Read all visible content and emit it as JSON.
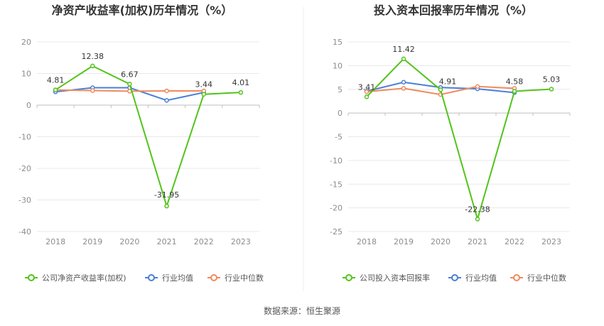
{
  "chart_data": [
    {
      "type": "line",
      "title": "净资产收益率(加权)历年情况（%）",
      "categories": [
        "2018",
        "2019",
        "2020",
        "2021",
        "2022",
        "2023"
      ],
      "ylim": [
        -40,
        20
      ],
      "yticks": [
        20,
        10,
        0,
        -10,
        -20,
        -30,
        -40
      ],
      "series": [
        {
          "name": "公司净资产收益率(加权)",
          "color": "#52c41a",
          "values": [
            4.81,
            12.38,
            6.67,
            -31.95,
            3.44,
            4.01
          ],
          "labeled": true
        },
        {
          "name": "行业均值",
          "color": "#4a7fd6",
          "values": [
            4.2,
            5.5,
            5.5,
            1.5,
            4.0,
            null
          ],
          "labeled": false
        },
        {
          "name": "行业中位数",
          "color": "#f08a5d",
          "values": [
            4.8,
            4.6,
            4.4,
            4.5,
            4.5,
            null
          ],
          "labeled": false
        }
      ],
      "data_labels": [
        "4.81",
        "12.38",
        "6.67",
        "-31.95",
        "3.44",
        "4.01"
      ]
    },
    {
      "type": "line",
      "title": "投入资本回报率历年情况（%）",
      "categories": [
        "2018",
        "2019",
        "2020",
        "2021",
        "2022",
        "2023"
      ],
      "ylim": [
        -25,
        15
      ],
      "yticks": [
        15,
        10,
        5,
        0,
        -5,
        -10,
        -15,
        -20,
        -25
      ],
      "series": [
        {
          "name": "公司投入资本回报率",
          "color": "#52c41a",
          "values": [
            3.41,
            11.42,
            4.91,
            -22.38,
            4.58,
            5.03
          ],
          "labeled": true
        },
        {
          "name": "行业均值",
          "color": "#4a7fd6",
          "values": [
            4.6,
            6.5,
            5.4,
            5.1,
            4.3,
            null
          ],
          "labeled": false
        },
        {
          "name": "行业中位数",
          "color": "#f08a5d",
          "values": [
            4.5,
            5.2,
            3.9,
            5.6,
            5.2,
            null
          ],
          "labeled": false
        }
      ],
      "data_labels": [
        "3.41",
        "11.42",
        "4.91",
        "-22.38",
        "4.58",
        "5.03"
      ]
    }
  ],
  "footer": {
    "source": "数据来源：恒生聚源"
  }
}
